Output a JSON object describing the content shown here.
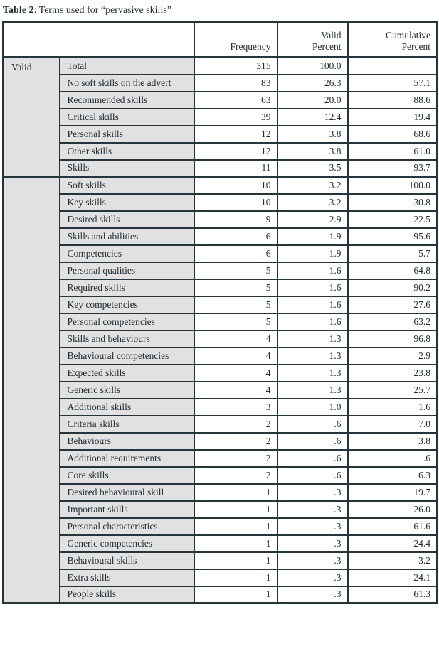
{
  "caption": {
    "label": "Table 2",
    "text": ": Terms used for “pervasive skills”"
  },
  "colors": {
    "border": "#28343c",
    "label_cell_gray": "#e1e1e1",
    "data_cell_white": "#ffffff",
    "text": "#222c33"
  },
  "table": {
    "header": {
      "frequency": "Frequency",
      "valid_percent": "Valid\nPercent",
      "cumulative_percent": "Cumulative\nPercent"
    },
    "groups": [
      {
        "label": "Valid",
        "rows": [
          {
            "term": "Total",
            "frequency": "315",
            "valid_percent": "100.0",
            "cumulative_percent": ""
          },
          {
            "term": "No soft skills on the advert",
            "frequency": "83",
            "valid_percent": "26.3",
            "cumulative_percent": "57.1"
          },
          {
            "term": "Recommended skills",
            "frequency": "63",
            "valid_percent": "20.0",
            "cumulative_percent": "88.6"
          },
          {
            "term": "Critical skills",
            "frequency": "39",
            "valid_percent": "12.4",
            "cumulative_percent": "19.4"
          },
          {
            "term": "Personal skills",
            "frequency": "12",
            "valid_percent": "3.8",
            "cumulative_percent": "68.6"
          },
          {
            "term": "Other skills",
            "frequency": "12",
            "valid_percent": "3.8",
            "cumulative_percent": "61.0"
          },
          {
            "term": "Skills",
            "frequency": "11",
            "valid_percent": "3.5",
            "cumulative_percent": "93.7"
          }
        ]
      },
      {
        "label": "",
        "rows": [
          {
            "term": "Soft skills",
            "frequency": "10",
            "valid_percent": "3.2",
            "cumulative_percent": "100.0"
          },
          {
            "term": "Key skills",
            "frequency": "10",
            "valid_percent": "3.2",
            "cumulative_percent": "30.8"
          },
          {
            "term": "Desired skills",
            "frequency": "9",
            "valid_percent": "2.9",
            "cumulative_percent": "22.5"
          },
          {
            "term": "Skills and abilities",
            "frequency": "6",
            "valid_percent": "1.9",
            "cumulative_percent": "95.6"
          },
          {
            "term": "Competencies",
            "frequency": "6",
            "valid_percent": "1.9",
            "cumulative_percent": "5.7"
          },
          {
            "term": "Personal qualities",
            "frequency": "5",
            "valid_percent": "1.6",
            "cumulative_percent": "64.8"
          },
          {
            "term": "Required skills",
            "frequency": "5",
            "valid_percent": "1.6",
            "cumulative_percent": "90.2"
          },
          {
            "term": "Key competencies",
            "frequency": "5",
            "valid_percent": "1.6",
            "cumulative_percent": "27.6"
          },
          {
            "term": "Personal competencies",
            "frequency": "5",
            "valid_percent": "1.6",
            "cumulative_percent": "63.2"
          },
          {
            "term": "Skills and behaviours",
            "frequency": "4",
            "valid_percent": "1.3",
            "cumulative_percent": "96.8"
          },
          {
            "term": "Behavioural competencies",
            "frequency": "4",
            "valid_percent": "1.3",
            "cumulative_percent": "2.9"
          },
          {
            "term": "Expected skills",
            "frequency": "4",
            "valid_percent": "1.3",
            "cumulative_percent": "23.8"
          },
          {
            "term": "Generic skills",
            "frequency": "4",
            "valid_percent": "1.3",
            "cumulative_percent": "25.7"
          },
          {
            "term": "Additional skills",
            "frequency": "3",
            "valid_percent": "1.0",
            "cumulative_percent": "1.6"
          },
          {
            "term": "Criteria skills",
            "frequency": "2",
            "valid_percent": ".6",
            "cumulative_percent": "7.0"
          },
          {
            "term": "Behaviours",
            "frequency": "2",
            "valid_percent": ".6",
            "cumulative_percent": "3.8"
          },
          {
            "term": "Additional requirements",
            "frequency": "2",
            "valid_percent": ".6",
            "cumulative_percent": ".6"
          },
          {
            "term": "Core skills",
            "frequency": "2",
            "valid_percent": ".6",
            "cumulative_percent": "6.3"
          },
          {
            "term": "Desired behavioural skill",
            "frequency": "1",
            "valid_percent": ".3",
            "cumulative_percent": "19.7"
          },
          {
            "term": "Important skills",
            "frequency": "1",
            "valid_percent": ".3",
            "cumulative_percent": "26.0"
          },
          {
            "term": "Personal characteristics",
            "frequency": "1",
            "valid_percent": ".3",
            "cumulative_percent": "61.6"
          },
          {
            "term": "Generic competencies",
            "frequency": "1",
            "valid_percent": ".3",
            "cumulative_percent": "24.4"
          },
          {
            "term": "Behavioural skills",
            "frequency": "1",
            "valid_percent": ".3",
            "cumulative_percent": "3.2"
          },
          {
            "term": "Extra skills",
            "frequency": "1",
            "valid_percent": ".3",
            "cumulative_percent": "24.1"
          },
          {
            "term": "People skills",
            "frequency": "1",
            "valid_percent": ".3",
            "cumulative_percent": "61.3"
          }
        ]
      }
    ]
  }
}
